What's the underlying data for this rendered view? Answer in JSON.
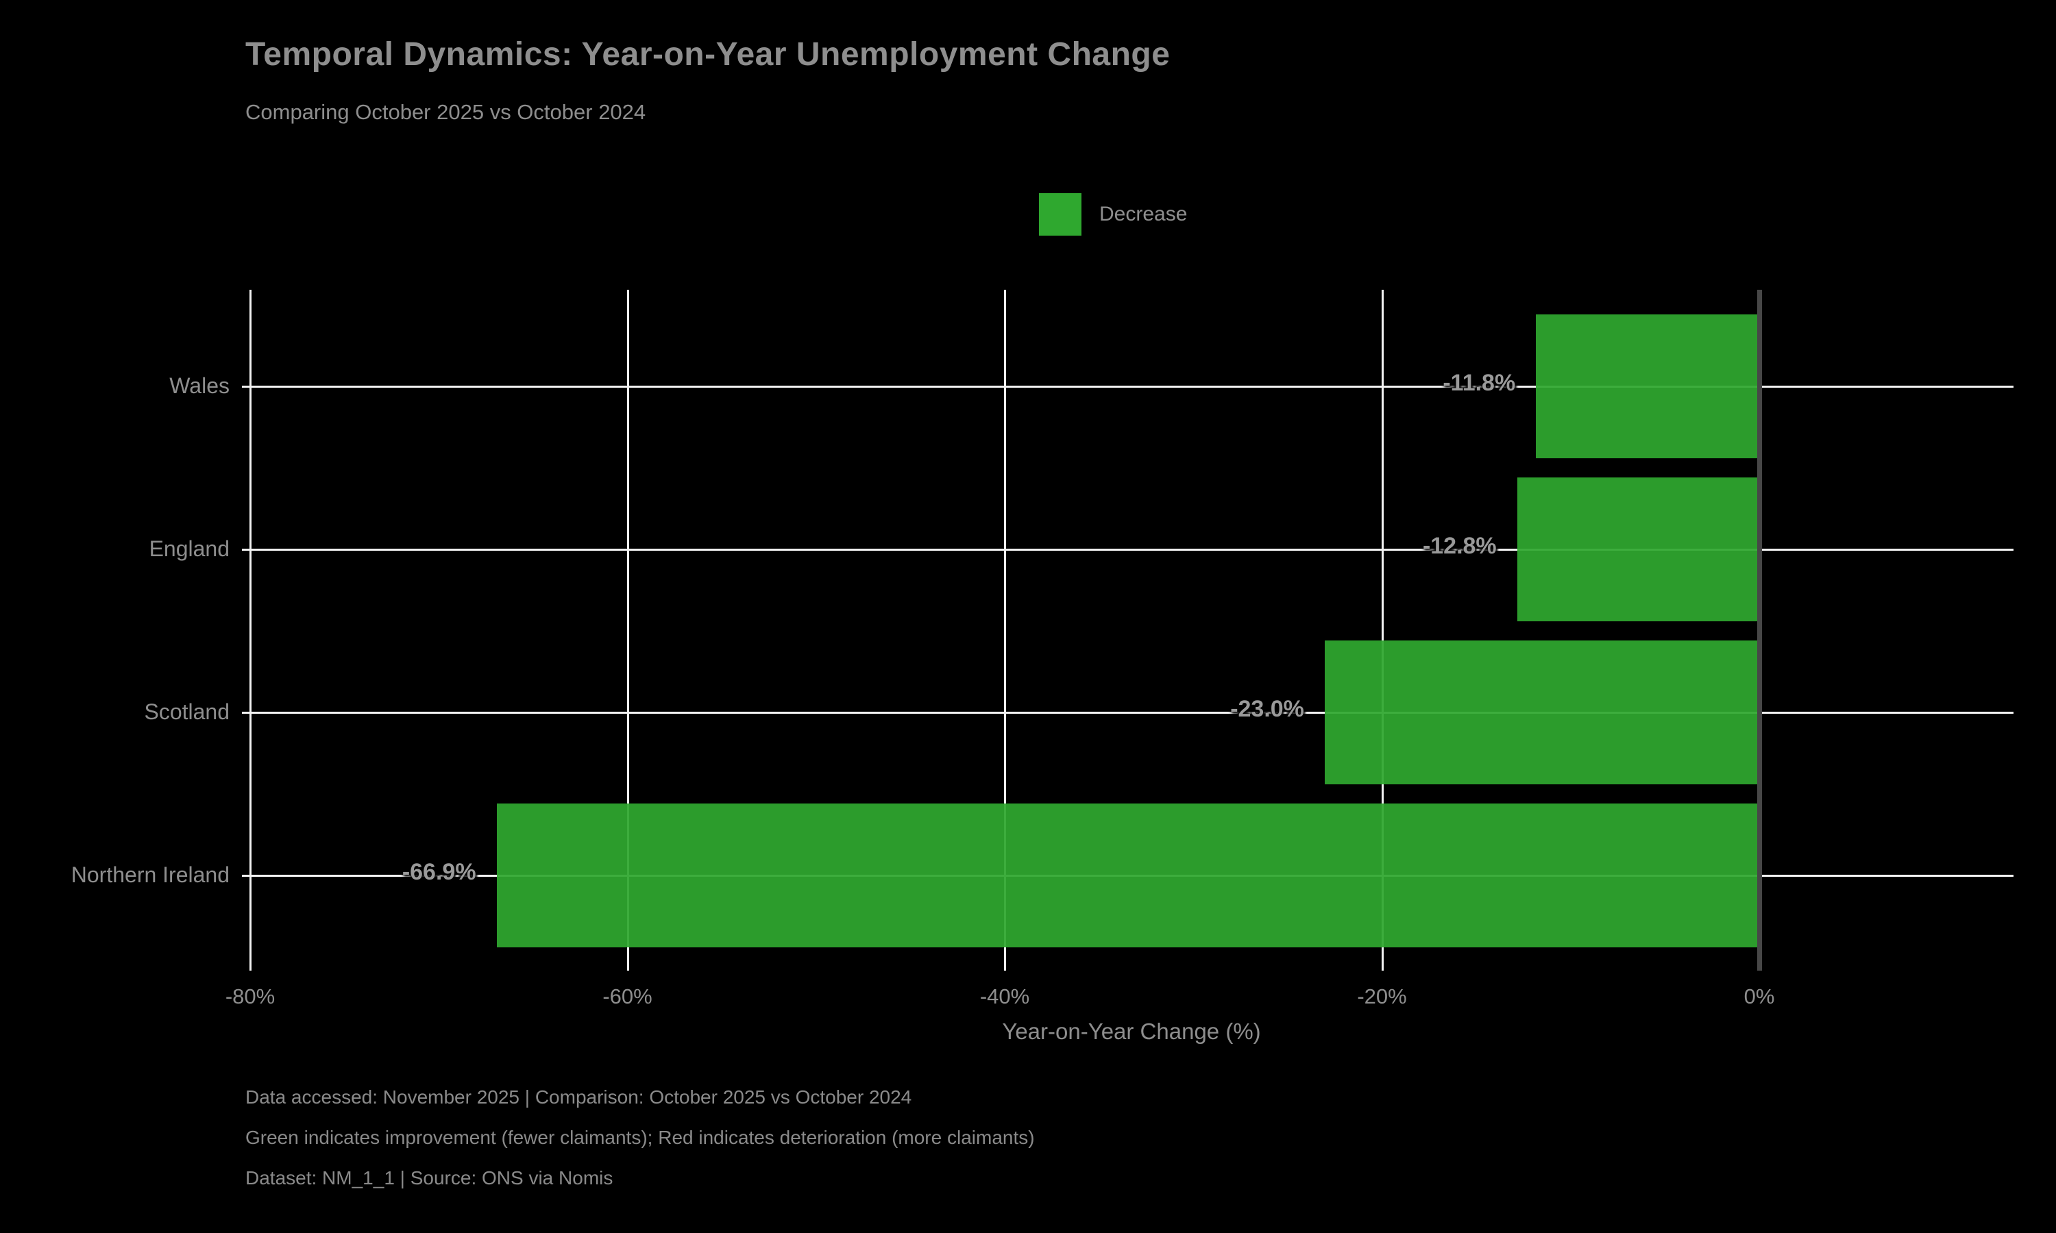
{
  "header": {
    "title": "Temporal Dynamics: Year-on-Year Unemployment Change",
    "subtitle": "Comparing October 2025 vs October 2024"
  },
  "legend": {
    "label": "Decrease",
    "color": "#2fa82f"
  },
  "chart_data": {
    "type": "bar",
    "orientation": "horizontal",
    "categories": [
      "Wales",
      "England",
      "Scotland",
      "Northern Ireland"
    ],
    "values": [
      -11.8,
      -12.8,
      -23.0,
      -66.9
    ],
    "value_labels": [
      "-11.8%",
      "-12.8%",
      "-23.0%",
      "-66.9%"
    ],
    "series_name": "Decrease",
    "bar_color": "#2fa82f",
    "xlabel": "Year-on-Year Change (%)",
    "xticks": [
      -80,
      -60,
      -40,
      -20,
      0
    ],
    "xtick_labels": [
      "-80%",
      "-60%",
      "-40%",
      "-20%",
      "0%"
    ],
    "xlim": [
      -80,
      13.5
    ],
    "grid": true,
    "grid_color": "#f2f2f2",
    "zero_line_color": "#474747",
    "background": "#000000",
    "legend_position": "upper center"
  },
  "footer": {
    "line1": "Data accessed: November 2025 | Comparison: October 2025 vs October 2024",
    "line2": "Green indicates improvement (fewer claimants); Red indicates deterioration (more claimants)",
    "line3": "Dataset: NM_1_1 | Source: ONS via Nomis"
  }
}
